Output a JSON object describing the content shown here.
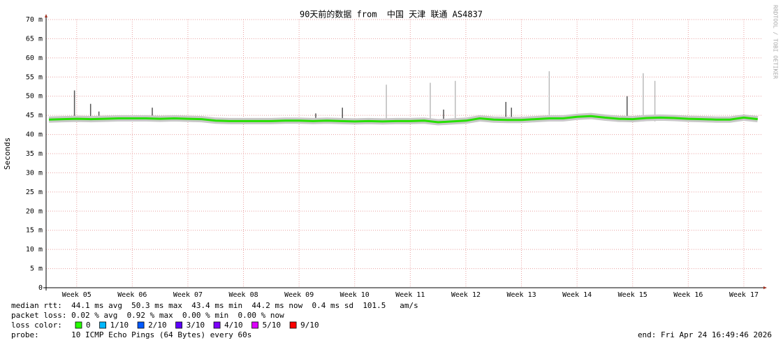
{
  "chart_data": {
    "type": "line",
    "title": "90天前的数据 from  中国 天津 联通 AS4837",
    "side_label": "RRDTOOL / TOBI OETIKER",
    "ylabel": "Seconds",
    "ylim": [
      0,
      70
    ],
    "yticks": [
      0,
      {
        "value": 5,
        "label": "5 m"
      },
      {
        "value": 10,
        "label": "10 m"
      },
      {
        "value": 15,
        "label": "15 m"
      },
      {
        "value": 20,
        "label": "20 m"
      },
      {
        "value": 25,
        "label": "25 m"
      },
      {
        "value": 30,
        "label": "30 m"
      },
      {
        "value": 35,
        "label": "35 m"
      },
      {
        "value": 40,
        "label": "40 m"
      },
      {
        "value": 45,
        "label": "45 m"
      },
      {
        "value": 50,
        "label": "50 m"
      },
      {
        "value": 55,
        "label": "55 m"
      },
      {
        "value": 60,
        "label": "60 m"
      },
      {
        "value": 65,
        "label": "65 m"
      },
      {
        "value": 70,
        "label": "70 m"
      }
    ],
    "xlim": [
      4.45,
      17.34
    ],
    "xticks": [
      {
        "value": 5,
        "label": "Week 05"
      },
      {
        "value": 6,
        "label": "Week 06"
      },
      {
        "value": 7,
        "label": "Week 07"
      },
      {
        "value": 8,
        "label": "Week 08"
      },
      {
        "value": 9,
        "label": "Week 09"
      },
      {
        "value": 10,
        "label": "Week 10"
      },
      {
        "value": 11,
        "label": "Week 11"
      },
      {
        "value": 12,
        "label": "Week 12"
      },
      {
        "value": 13,
        "label": "Week 13"
      },
      {
        "value": 14,
        "label": "Week 14"
      },
      {
        "value": 15,
        "label": "Week 15"
      },
      {
        "value": 16,
        "label": "Week 16"
      },
      {
        "value": 17,
        "label": "Week 17"
      }
    ],
    "grid": true,
    "color": "#26e000",
    "x": [
      4.5,
      4.75,
      5.0,
      5.25,
      5.5,
      5.75,
      6.0,
      6.25,
      6.5,
      6.75,
      7.0,
      7.25,
      7.5,
      7.75,
      8.0,
      8.25,
      8.5,
      8.75,
      9.0,
      9.25,
      9.5,
      9.75,
      10.0,
      10.25,
      10.5,
      10.75,
      11.0,
      11.25,
      11.5,
      11.75,
      12.0,
      12.25,
      12.5,
      12.75,
      13.0,
      13.25,
      13.5,
      13.75,
      14.0,
      14.25,
      14.5,
      14.75,
      15.0,
      15.25,
      15.5,
      15.75,
      16.0,
      16.25,
      16.5,
      16.75,
      17.0,
      17.25
    ],
    "values": [
      43.9,
      44.0,
      44.1,
      44.0,
      44.1,
      44.2,
      44.2,
      44.2,
      44.1,
      44.2,
      44.1,
      44.0,
      43.6,
      43.5,
      43.5,
      43.5,
      43.5,
      43.6,
      43.6,
      43.5,
      43.6,
      43.5,
      43.4,
      43.5,
      43.4,
      43.5,
      43.5,
      43.6,
      43.2,
      43.4,
      43.6,
      44.2,
      43.9,
      43.8,
      43.8,
      44.0,
      44.2,
      44.2,
      44.6,
      44.8,
      44.4,
      44.1,
      44.0,
      44.3,
      44.4,
      44.3,
      44.1,
      44.0,
      43.9,
      43.9,
      44.4,
      44.0
    ],
    "spikes": {
      "x": [
        4.96,
        5.25,
        5.4,
        6.36,
        9.3,
        9.78,
        10.57,
        11.36,
        11.6,
        11.81,
        12.72,
        12.82,
        13.5,
        14.9,
        15.19,
        15.4
      ],
      "values": [
        51.5,
        48,
        46,
        47,
        45.5,
        47,
        53,
        53.5,
        46.5,
        54,
        48.5,
        47,
        56.5,
        50,
        56,
        54
      ]
    },
    "stats": {
      "median": "median rtt:  44.1 ms avg  50.3 ms max  43.4 ms min  44.2 ms now  0.4 ms sd  101.5   am/s",
      "loss": "packet loss: 0.02 % avg  0.92 % max  0.00 % min  0.00 % now",
      "loss_color": "loss color:",
      "probe": "probe:       10 ICMP Echo Pings (64 Bytes) every 60s",
      "end": "end: Fri Apr 24 16:49:46 2026"
    },
    "legend": [
      {
        "name": "0",
        "color": "#26ff00"
      },
      {
        "name": "1/10",
        "color": "#00b8ff"
      },
      {
        "name": "2/10",
        "color": "#0059ff"
      },
      {
        "name": "3/10",
        "color": "#5e00ff"
      },
      {
        "name": "4/10",
        "color": "#7e00ff"
      },
      {
        "name": "5/10",
        "color": "#dd00ff"
      },
      {
        "name": "9/10",
        "color": "#ff0000"
      }
    ]
  }
}
